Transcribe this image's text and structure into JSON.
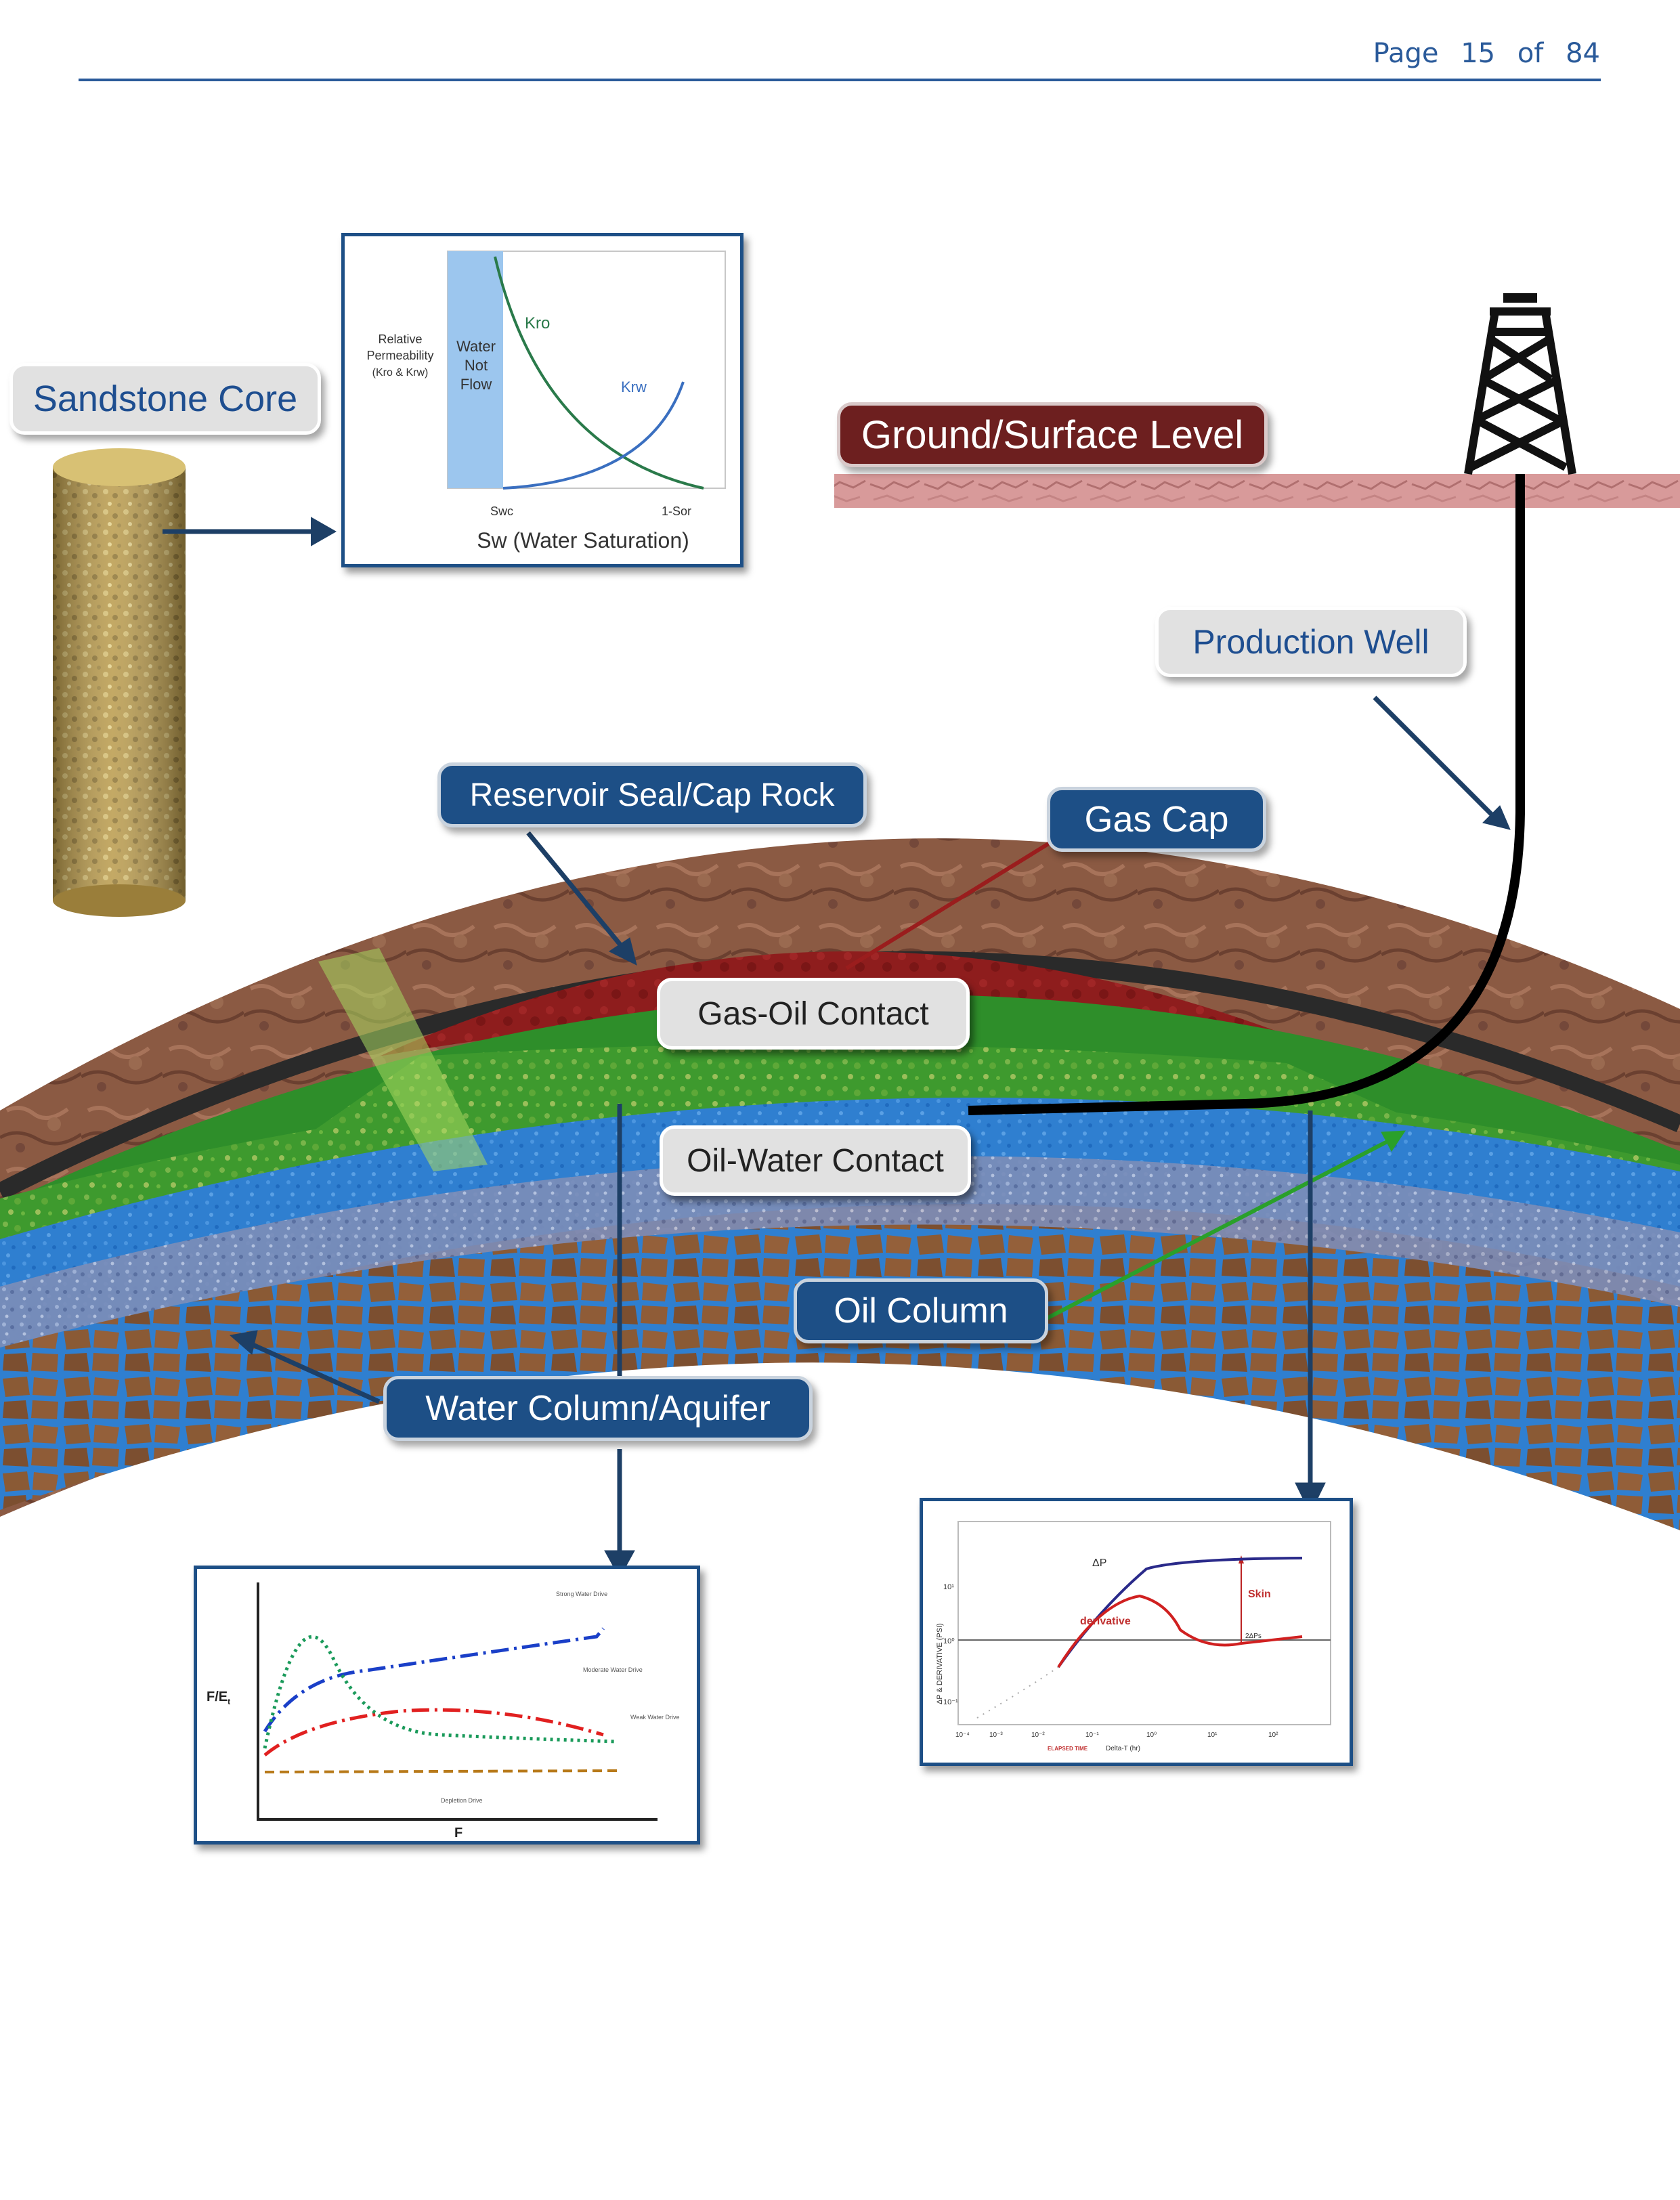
{
  "header": {
    "page_label": "Page",
    "page_current": "15",
    "page_of": "of",
    "page_total": "84"
  },
  "colors": {
    "brand_blue": "#1d4f86",
    "gas_cap": "#8e1d1d",
    "oil_column": "#3aa53a",
    "water": "#2f7fd0",
    "cap_rock": "#8a5a40"
  },
  "labels": {
    "sandstone_core": "Sandstone Core",
    "ground_surface": "Ground/Surface Level",
    "production_well": "Production Well",
    "reservoir_seal": "Reservoir Seal/Cap Rock",
    "gas_cap": "Gas Cap",
    "gas_oil_contact": "Gas-Oil Contact",
    "oil_water_contact": "Oil-Water Contact",
    "oil_column": "Oil Column",
    "water_column": "Water Column/Aquifer"
  },
  "relperm_chart": {
    "ylabel_lines": [
      "Relative",
      "Permeability",
      "(Kro & Krw)"
    ],
    "band_lines": [
      "Water",
      "Not",
      "Flow"
    ],
    "kro": "Kro",
    "krw": "Krw",
    "swc": "Swc",
    "one_minus_sor": "1-Sor",
    "xlabel": "Sw (Water Saturation)"
  },
  "drive_chart": {
    "ylabel": "F/E",
    "ylabel_sub": "t",
    "xlabel": "F",
    "strong": "Strong Water Drive",
    "moderate": "Moderate Water Drive",
    "weak": "Weak Water Drive",
    "depletion": "Depletion Drive"
  },
  "pressure_chart": {
    "delta_p": "ΔP",
    "derivative": "derivative",
    "skin": "Skin",
    "ylabel": "ΔP & DERIVATIVE (PSI)",
    "xlabel": "Delta-T (hr)",
    "xlabel_red": "ELAPSED TIME",
    "ytick_top": "10¹",
    "ytick_mid": "10⁰",
    "ytick_bot": "10⁻¹",
    "xticks": [
      "10⁻⁴",
      "10⁻³",
      "10⁻²",
      "10⁻¹",
      "10⁰",
      "10¹",
      "10²"
    ],
    "skin_small": "2ΔPs"
  }
}
